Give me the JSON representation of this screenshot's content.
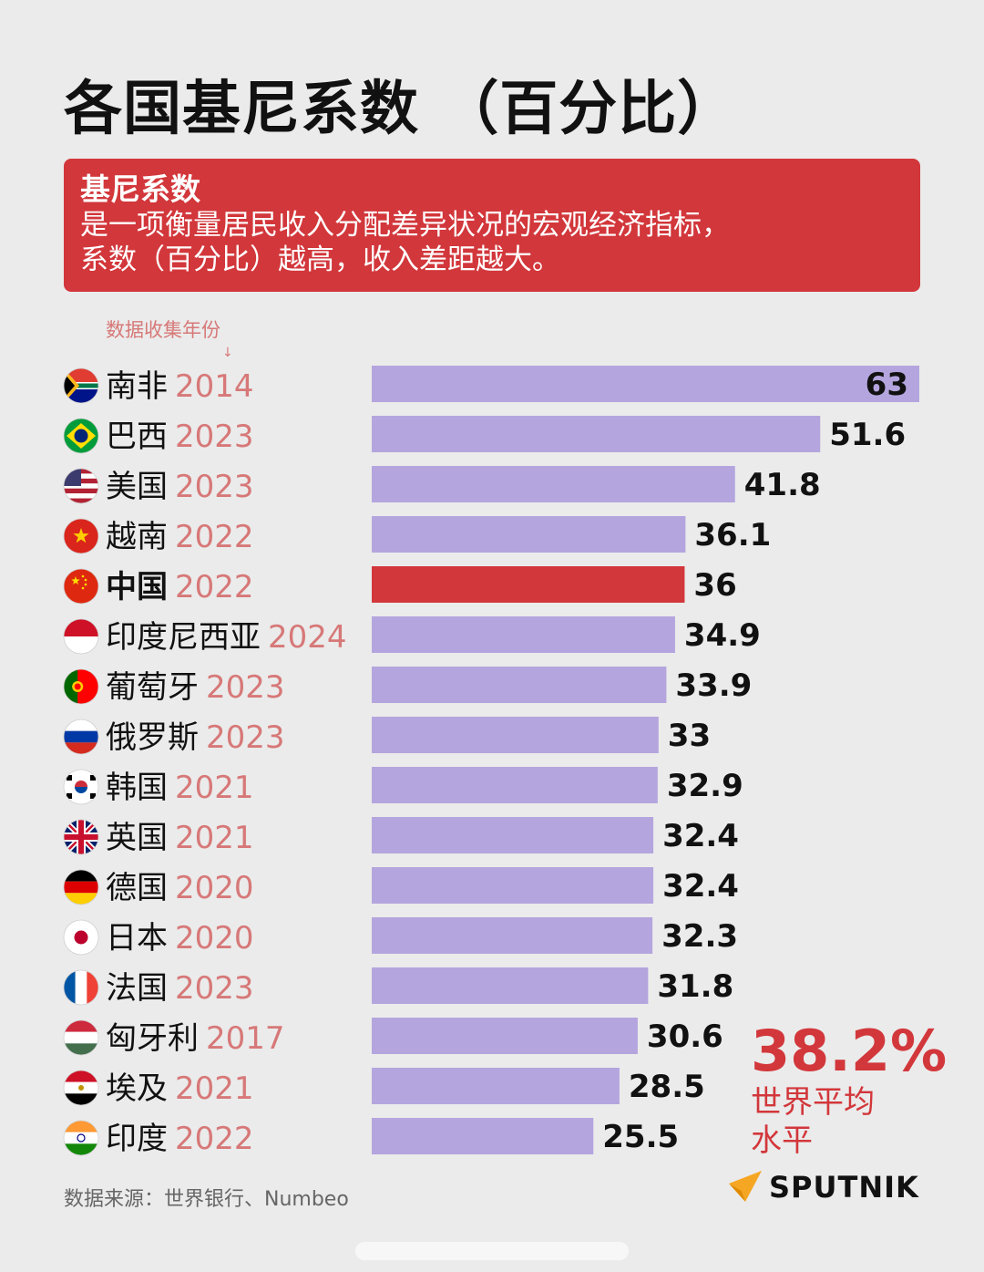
{
  "title": "各国基尼系数 （百分比）",
  "definition": {
    "heading": "基尼系数",
    "line1": "是一项衡量居民收入分配差异状况的宏观经济指标，",
    "line2": "系数（百分比）越高，收入差距越大。"
  },
  "year_note": "数据收集年份",
  "world_average": {
    "value": "38.2%",
    "label": "世界平均水平"
  },
  "source": "数据来源：世界银行、Numbeo",
  "brand": "SPUTNIK",
  "colors": {
    "bar": "#b4a5de",
    "highlight": "#d2373b",
    "year": "#d77878",
    "text": "#111111"
  },
  "chart_data": {
    "type": "bar",
    "orientation": "horizontal",
    "categories": [
      "南非",
      "巴西",
      "美国",
      "越南",
      "中国",
      "印度尼西亚",
      "葡萄牙",
      "俄罗斯",
      "韩国",
      "英国",
      "德国",
      "日本",
      "法国",
      "匈牙利",
      "埃及",
      "印度"
    ],
    "years": [
      "2014",
      "2023",
      "2023",
      "2022",
      "2022",
      "2024",
      "2023",
      "2023",
      "2021",
      "2021",
      "2020",
      "2020",
      "2023",
      "2017",
      "2021",
      "2022"
    ],
    "flag_icons": [
      "south-africa-flag-icon",
      "brazil-flag-icon",
      "usa-flag-icon",
      "vietnam-flag-icon",
      "china-flag-icon",
      "indonesia-flag-icon",
      "portugal-flag-icon",
      "russia-flag-icon",
      "south-korea-flag-icon",
      "uk-flag-icon",
      "germany-flag-icon",
      "japan-flag-icon",
      "france-flag-icon",
      "hungary-flag-icon",
      "egypt-flag-icon",
      "india-flag-icon"
    ],
    "values": [
      63,
      51.6,
      41.8,
      36.1,
      36,
      34.9,
      33.9,
      33,
      32.9,
      32.4,
      32.4,
      32.3,
      31.8,
      30.6,
      28.5,
      25.5
    ],
    "value_labels": [
      "63",
      "51.6",
      "41.8",
      "36.1",
      "36",
      "34.9",
      "33.9",
      "33",
      "32.9",
      "32.4",
      "32.4",
      "32.3",
      "31.8",
      "30.6",
      "28.5",
      "25.5"
    ],
    "highlight": "中国",
    "xlim": [
      0,
      63
    ]
  }
}
